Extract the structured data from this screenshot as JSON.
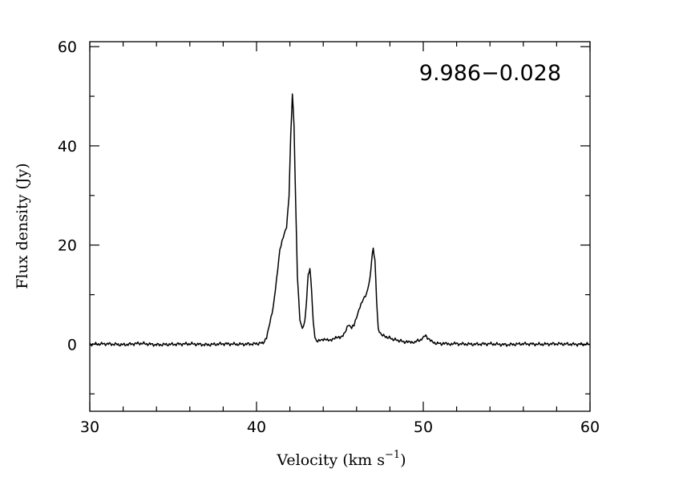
{
  "chart_data": {
    "type": "line",
    "title": "",
    "annotation": "9.986−0.028",
    "xlabel": {
      "main": "Velocity (km s",
      "sup": "−1",
      "close": ")"
    },
    "ylabel": "Flux density (Jy)",
    "xlim": [
      30,
      60
    ],
    "ylim": [
      -13.5,
      61
    ],
    "x_ticks": [
      30,
      40,
      50,
      60
    ],
    "x_tick_labels": [
      "30",
      "40",
      "50",
      "60"
    ],
    "x_minor_step": 2,
    "y_ticks": [
      0,
      20,
      40,
      60
    ],
    "y_tick_labels": [
      "0",
      "20",
      "40",
      "60"
    ],
    "y_minor_step": 10,
    "grid": false,
    "legend": "none",
    "line_color": "#000000",
    "series": [
      {
        "x": [
          30.0,
          31.0,
          32.0,
          33.0,
          34.0,
          35.0,
          36.0,
          37.0,
          38.0,
          39.0,
          40.0,
          40.4,
          40.6,
          40.8,
          41.0,
          41.2,
          41.4,
          41.6,
          41.8,
          41.95,
          42.05,
          42.15,
          42.25,
          42.35,
          42.45,
          42.6,
          42.75,
          42.9,
          43.0,
          43.1,
          43.2,
          43.3,
          43.4,
          43.5,
          43.6,
          43.8,
          44.0,
          44.5,
          45.0,
          45.3,
          45.5,
          45.7,
          45.85,
          46.0,
          46.2,
          46.4,
          46.6,
          46.8,
          46.9,
          47.0,
          47.1,
          47.2,
          47.3,
          47.5,
          47.8,
          48.2,
          48.6,
          49.0,
          49.5,
          49.9,
          50.1,
          50.2,
          50.3,
          50.5,
          50.8,
          51.2,
          52.0,
          53.0,
          54.0,
          55.0,
          56.0,
          57.0,
          58.0,
          59.0,
          60.0
        ],
        "y": [
          0.0,
          0.1,
          -0.1,
          0.2,
          -0.1,
          0.0,
          0.1,
          -0.1,
          0.1,
          0.0,
          0.1,
          0.3,
          1.5,
          4.5,
          7.5,
          13.0,
          19.0,
          21.5,
          23.5,
          30.0,
          42.0,
          50.5,
          44.0,
          28.0,
          14.0,
          5.0,
          3.0,
          4.5,
          9.0,
          14.0,
          15.3,
          11.0,
          4.5,
          1.5,
          0.6,
          0.8,
          0.8,
          1.0,
          1.4,
          2.2,
          3.8,
          3.2,
          3.8,
          5.5,
          7.5,
          9.0,
          10.0,
          13.0,
          17.0,
          19.3,
          17.0,
          9.0,
          3.0,
          1.8,
          1.5,
          1.0,
          0.7,
          0.4,
          0.5,
          1.0,
          1.7,
          1.6,
          1.0,
          0.5,
          0.2,
          0.1,
          0.1,
          0.0,
          0.1,
          -0.1,
          0.1,
          0.0,
          0.1,
          0.0,
          0.0
        ]
      }
    ]
  }
}
